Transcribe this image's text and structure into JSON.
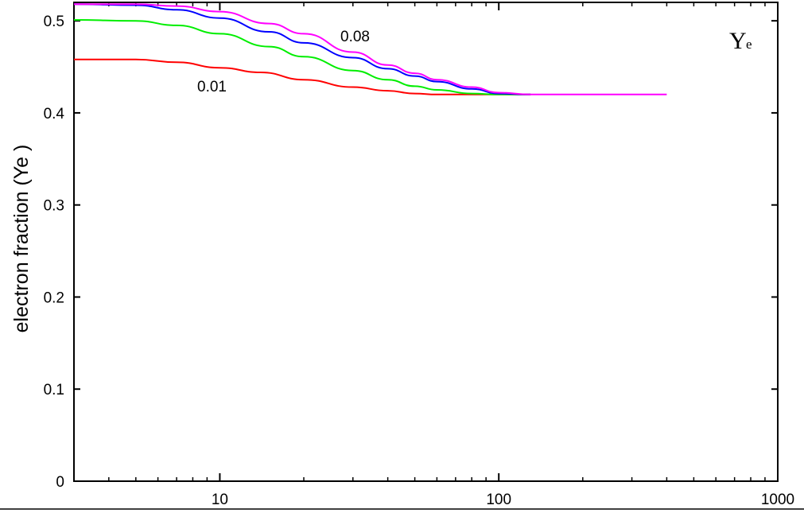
{
  "chart_data": {
    "type": "line",
    "title": "",
    "xlabel": "",
    "ylabel": "electron fraction (Ye )",
    "corner_label": {
      "main": "Y",
      "sub": "e"
    },
    "xscale": "log",
    "xlim": [
      3,
      1000
    ],
    "ylim": [
      0,
      0.52
    ],
    "xticks": [
      {
        "value": 10,
        "label": "10"
      },
      {
        "value": 100,
        "label": "100"
      },
      {
        "value": 1000,
        "label": "1000"
      }
    ],
    "yticks": [
      {
        "value": 0,
        "label": "0"
      },
      {
        "value": 0.1,
        "label": "0.1"
      },
      {
        "value": 0.2,
        "label": "0.2"
      },
      {
        "value": 0.3,
        "label": "0.3"
      },
      {
        "value": 0.4,
        "label": "0.4"
      },
      {
        "value": 0.5,
        "label": "0.5"
      }
    ],
    "grid": false,
    "series": [
      {
        "color": "#ff0000",
        "label": "0.01",
        "points": [
          [
            3,
            0.458
          ],
          [
            5,
            0.458
          ],
          [
            7,
            0.455
          ],
          [
            10,
            0.449
          ],
          [
            14,
            0.444
          ],
          [
            20,
            0.436
          ],
          [
            30,
            0.428
          ],
          [
            40,
            0.424
          ],
          [
            50,
            0.421
          ],
          [
            60,
            0.42
          ],
          [
            80,
            0.42
          ],
          [
            100,
            0.42
          ],
          [
            130,
            0.42
          ]
        ]
      },
      {
        "color": "#00ee00",
        "label": "",
        "points": [
          [
            3,
            0.501
          ],
          [
            5,
            0.5
          ],
          [
            7,
            0.495
          ],
          [
            10,
            0.486
          ],
          [
            15,
            0.472
          ],
          [
            20,
            0.461
          ],
          [
            30,
            0.446
          ],
          [
            40,
            0.436
          ],
          [
            50,
            0.429
          ],
          [
            60,
            0.425
          ],
          [
            80,
            0.421
          ],
          [
            100,
            0.42
          ],
          [
            130,
            0.42
          ]
        ]
      },
      {
        "color": "#0000ff",
        "label": "",
        "points": [
          [
            3,
            0.518
          ],
          [
            5,
            0.517
          ],
          [
            7,
            0.512
          ],
          [
            10,
            0.503
          ],
          [
            15,
            0.488
          ],
          [
            20,
            0.476
          ],
          [
            30,
            0.46
          ],
          [
            40,
            0.448
          ],
          [
            50,
            0.44
          ],
          [
            60,
            0.434
          ],
          [
            80,
            0.426
          ],
          [
            100,
            0.421
          ],
          [
            130,
            0.42
          ]
        ]
      },
      {
        "color": "#ff00ff",
        "label": "0.08",
        "points": [
          [
            3,
            0.518
          ],
          [
            5,
            0.518
          ],
          [
            7,
            0.516
          ],
          [
            10,
            0.51
          ],
          [
            15,
            0.497
          ],
          [
            20,
            0.486
          ],
          [
            30,
            0.466
          ],
          [
            40,
            0.452
          ],
          [
            50,
            0.443
          ],
          [
            60,
            0.436
          ],
          [
            80,
            0.428
          ],
          [
            100,
            0.422
          ],
          [
            130,
            0.42
          ],
          [
            200,
            0.42
          ],
          [
            400,
            0.42
          ]
        ]
      }
    ]
  }
}
